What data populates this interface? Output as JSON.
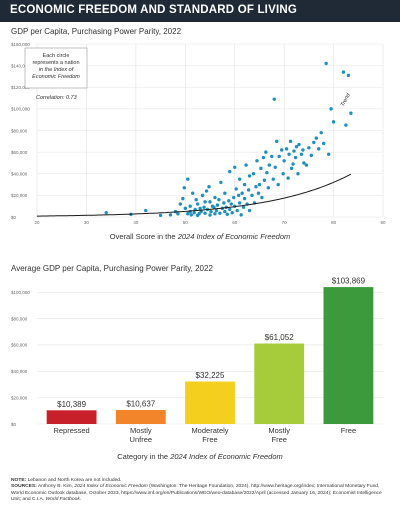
{
  "header": {
    "title": "ECONOMIC FREEDOM AND STANDARD OF LIVING"
  },
  "colors": {
    "header_bg": "#1f2a36",
    "scatter_dot": "#1f8fbf",
    "trend": "#1a1a1a"
  },
  "chart_data": [
    {
      "type": "scatter",
      "title": "GDP per Capita, Purchasing Power Parity, 2022",
      "xlabel_prefix": "Overall Score in the ",
      "xlabel_italic": "2024 Index of Economic Freedom",
      "ylim": [
        0,
        160000
      ],
      "xlim": [
        20,
        90
      ],
      "yticks": [
        0,
        20000,
        40000,
        60000,
        80000,
        100000,
        120000,
        140000,
        160000
      ],
      "ytick_labels": [
        "$0",
        "$20,000",
        "$40,000",
        "$60,000",
        "$80,000",
        "$100,000",
        "$120,000",
        "$140,000",
        "$160,000"
      ],
      "xticks": [
        20,
        30,
        40,
        50,
        60,
        70,
        80,
        90
      ],
      "xtick_labels": [
        "20",
        "30",
        "40",
        "50",
        "60",
        "70",
        "80",
        "90"
      ],
      "grid": true,
      "annotation_note": [
        "Each circle",
        "represents a nation",
        "in the Index of",
        "Economic Freedom"
      ],
      "correlation_label": "Correlation: 0.73",
      "trend_label": "Trend",
      "points": [
        [
          34.0,
          4000
        ],
        [
          39.0,
          2500
        ],
        [
          42.0,
          6000
        ],
        [
          45.0,
          1500
        ],
        [
          47.0,
          2000
        ],
        [
          48.0,
          5000
        ],
        [
          48.5,
          3000
        ],
        [
          49.0,
          12000
        ],
        [
          49.5,
          17000
        ],
        [
          49.8,
          27000
        ],
        [
          50.0,
          8000
        ],
        [
          50.5,
          3000
        ],
        [
          50.5,
          35000
        ],
        [
          51.0,
          5000
        ],
        [
          51.0,
          10000
        ],
        [
          51.2,
          2000
        ],
        [
          51.5,
          22000
        ],
        [
          51.8,
          4000
        ],
        [
          52.0,
          7000
        ],
        [
          52.2,
          16000
        ],
        [
          52.5,
          12000
        ],
        [
          52.5,
          1500
        ],
        [
          52.8,
          3000
        ],
        [
          53.0,
          8000
        ],
        [
          53.2,
          5000
        ],
        [
          53.5,
          20000
        ],
        [
          53.8,
          9000
        ],
        [
          54.0,
          14000
        ],
        [
          54.0,
          3500
        ],
        [
          54.3,
          24000
        ],
        [
          54.5,
          7000
        ],
        [
          54.8,
          28000
        ],
        [
          55.0,
          1800
        ],
        [
          55.0,
          14000
        ],
        [
          55.2,
          5000
        ],
        [
          55.5,
          10000
        ],
        [
          55.8,
          9000
        ],
        [
          56.0,
          3000
        ],
        [
          56.0,
          18000
        ],
        [
          56.3,
          6000
        ],
        [
          56.5,
          11000
        ],
        [
          56.8,
          16000
        ],
        [
          57.0,
          3500
        ],
        [
          57.2,
          32000
        ],
        [
          57.5,
          8000
        ],
        [
          57.8,
          13000
        ],
        [
          58.0,
          5000
        ],
        [
          58.0,
          22000
        ],
        [
          58.3,
          9000
        ],
        [
          58.5,
          2500
        ],
        [
          58.8,
          15000
        ],
        [
          59.0,
          7000
        ],
        [
          59.0,
          42000
        ],
        [
          59.3,
          12000
        ],
        [
          59.5,
          4000
        ],
        [
          59.8,
          18000
        ],
        [
          60.0,
          10000
        ],
        [
          60.0,
          46000
        ],
        [
          60.3,
          26000
        ],
        [
          60.5,
          6000
        ],
        [
          60.8,
          20000
        ],
        [
          61.0,
          13000
        ],
        [
          61.0,
          35000
        ],
        [
          61.3,
          2000
        ],
        [
          61.5,
          22000
        ],
        [
          61.8,
          9000
        ],
        [
          62.0,
          30000
        ],
        [
          62.0,
          17000
        ],
        [
          62.3,
          48000
        ],
        [
          62.5,
          12000
        ],
        [
          62.8,
          25000
        ],
        [
          63.0,
          6000
        ],
        [
          63.0,
          38000
        ],
        [
          63.5,
          20000
        ],
        [
          63.8,
          40000
        ],
        [
          64.0,
          13000
        ],
        [
          64.3,
          28000
        ],
        [
          64.5,
          52000
        ],
        [
          64.8,
          22000
        ],
        [
          65.0,
          30000
        ],
        [
          65.3,
          45000
        ],
        [
          65.5,
          18000
        ],
        [
          65.8,
          55000
        ],
        [
          66.0,
          34000
        ],
        [
          66.3,
          60000
        ],
        [
          66.5,
          41000
        ],
        [
          66.8,
          27000
        ],
        [
          67.0,
          48000
        ],
        [
          67.5,
          56000
        ],
        [
          67.8,
          35000
        ],
        [
          68.0,
          109000
        ],
        [
          68.2,
          46000
        ],
        [
          68.5,
          70000
        ],
        [
          68.8,
          30000
        ],
        [
          69.0,
          56000
        ],
        [
          69.5,
          62000
        ],
        [
          69.8,
          40000
        ],
        [
          70.0,
          52000
        ],
        [
          70.5,
          63000
        ],
        [
          70.8,
          36000
        ],
        [
          71.0,
          58000
        ],
        [
          71.3,
          70000
        ],
        [
          71.5,
          45000
        ],
        [
          71.8,
          49000
        ],
        [
          72.0,
          61000
        ],
        [
          72.3,
          55000
        ],
        [
          72.5,
          65000
        ],
        [
          72.8,
          40000
        ],
        [
          73.0,
          67000
        ],
        [
          73.5,
          58000
        ],
        [
          73.8,
          62000
        ],
        [
          74.0,
          50000
        ],
        [
          74.5,
          48000
        ],
        [
          75.0,
          64000
        ],
        [
          75.5,
          57000
        ],
        [
          76.0,
          69000
        ],
        [
          76.5,
          73000
        ],
        [
          77.0,
          63000
        ],
        [
          77.5,
          78000
        ],
        [
          78.0,
          68000
        ],
        [
          78.5,
          142000
        ],
        [
          79.0,
          58000
        ],
        [
          79.5,
          100000
        ],
        [
          80.0,
          88000
        ],
        [
          82.0,
          134000
        ],
        [
          82.5,
          85000
        ],
        [
          83.0,
          131000
        ],
        [
          83.5,
          96000
        ]
      ]
    },
    {
      "type": "bar",
      "title": "Average GDP per Capita, Purchasing Power Parity, 2022",
      "xlabel_prefix": "Category in the ",
      "xlabel_italic": "2024 Index of Economic Freedom",
      "ylim": [
        0,
        110000
      ],
      "yticks": [
        0,
        20000,
        40000,
        60000,
        80000,
        100000
      ],
      "ytick_labels": [
        "$0",
        "$20,000",
        "$40,000",
        "$60,000",
        "$80,000",
        "$100,000"
      ],
      "grid": true,
      "categories": [
        [
          "Repressed"
        ],
        [
          "Mostly",
          "Unfree"
        ],
        [
          "Moderately",
          "Free"
        ],
        [
          "Mostly",
          "Free"
        ],
        [
          "Free"
        ]
      ],
      "values": [
        10389,
        10637,
        32225,
        61052,
        103869
      ],
      "value_labels": [
        "$10,389",
        "$10,637",
        "$32,225",
        "$61,052",
        "$103,869"
      ],
      "colors": [
        "#c8202b",
        "#f2842a",
        "#f4cf1d",
        "#a6cc3b",
        "#3d9a3c"
      ]
    }
  ],
  "notes": {
    "note_label": "NOTE:",
    "note_text": " Lebanon and North Korea are not included.",
    "sources_label": "SOURCES:",
    "sources_pre": " Anthony B. Kim, ",
    "sources_italic1": "2024 Index of Economic Freedom",
    "sources_mid": " (Washington: The Heritage Foundation, 2024), http://www.heritage.org/index; International Monetary Fund, World Economic Outlook database, October 2023, https://www.imf.org/en/Publications/WEO/weo-database/2022/April (accessed January 16, 2024); Economist Intelligence Unit; and C.I.A. ",
    "sources_italic2": "World Factbook",
    "sources_end": "."
  }
}
